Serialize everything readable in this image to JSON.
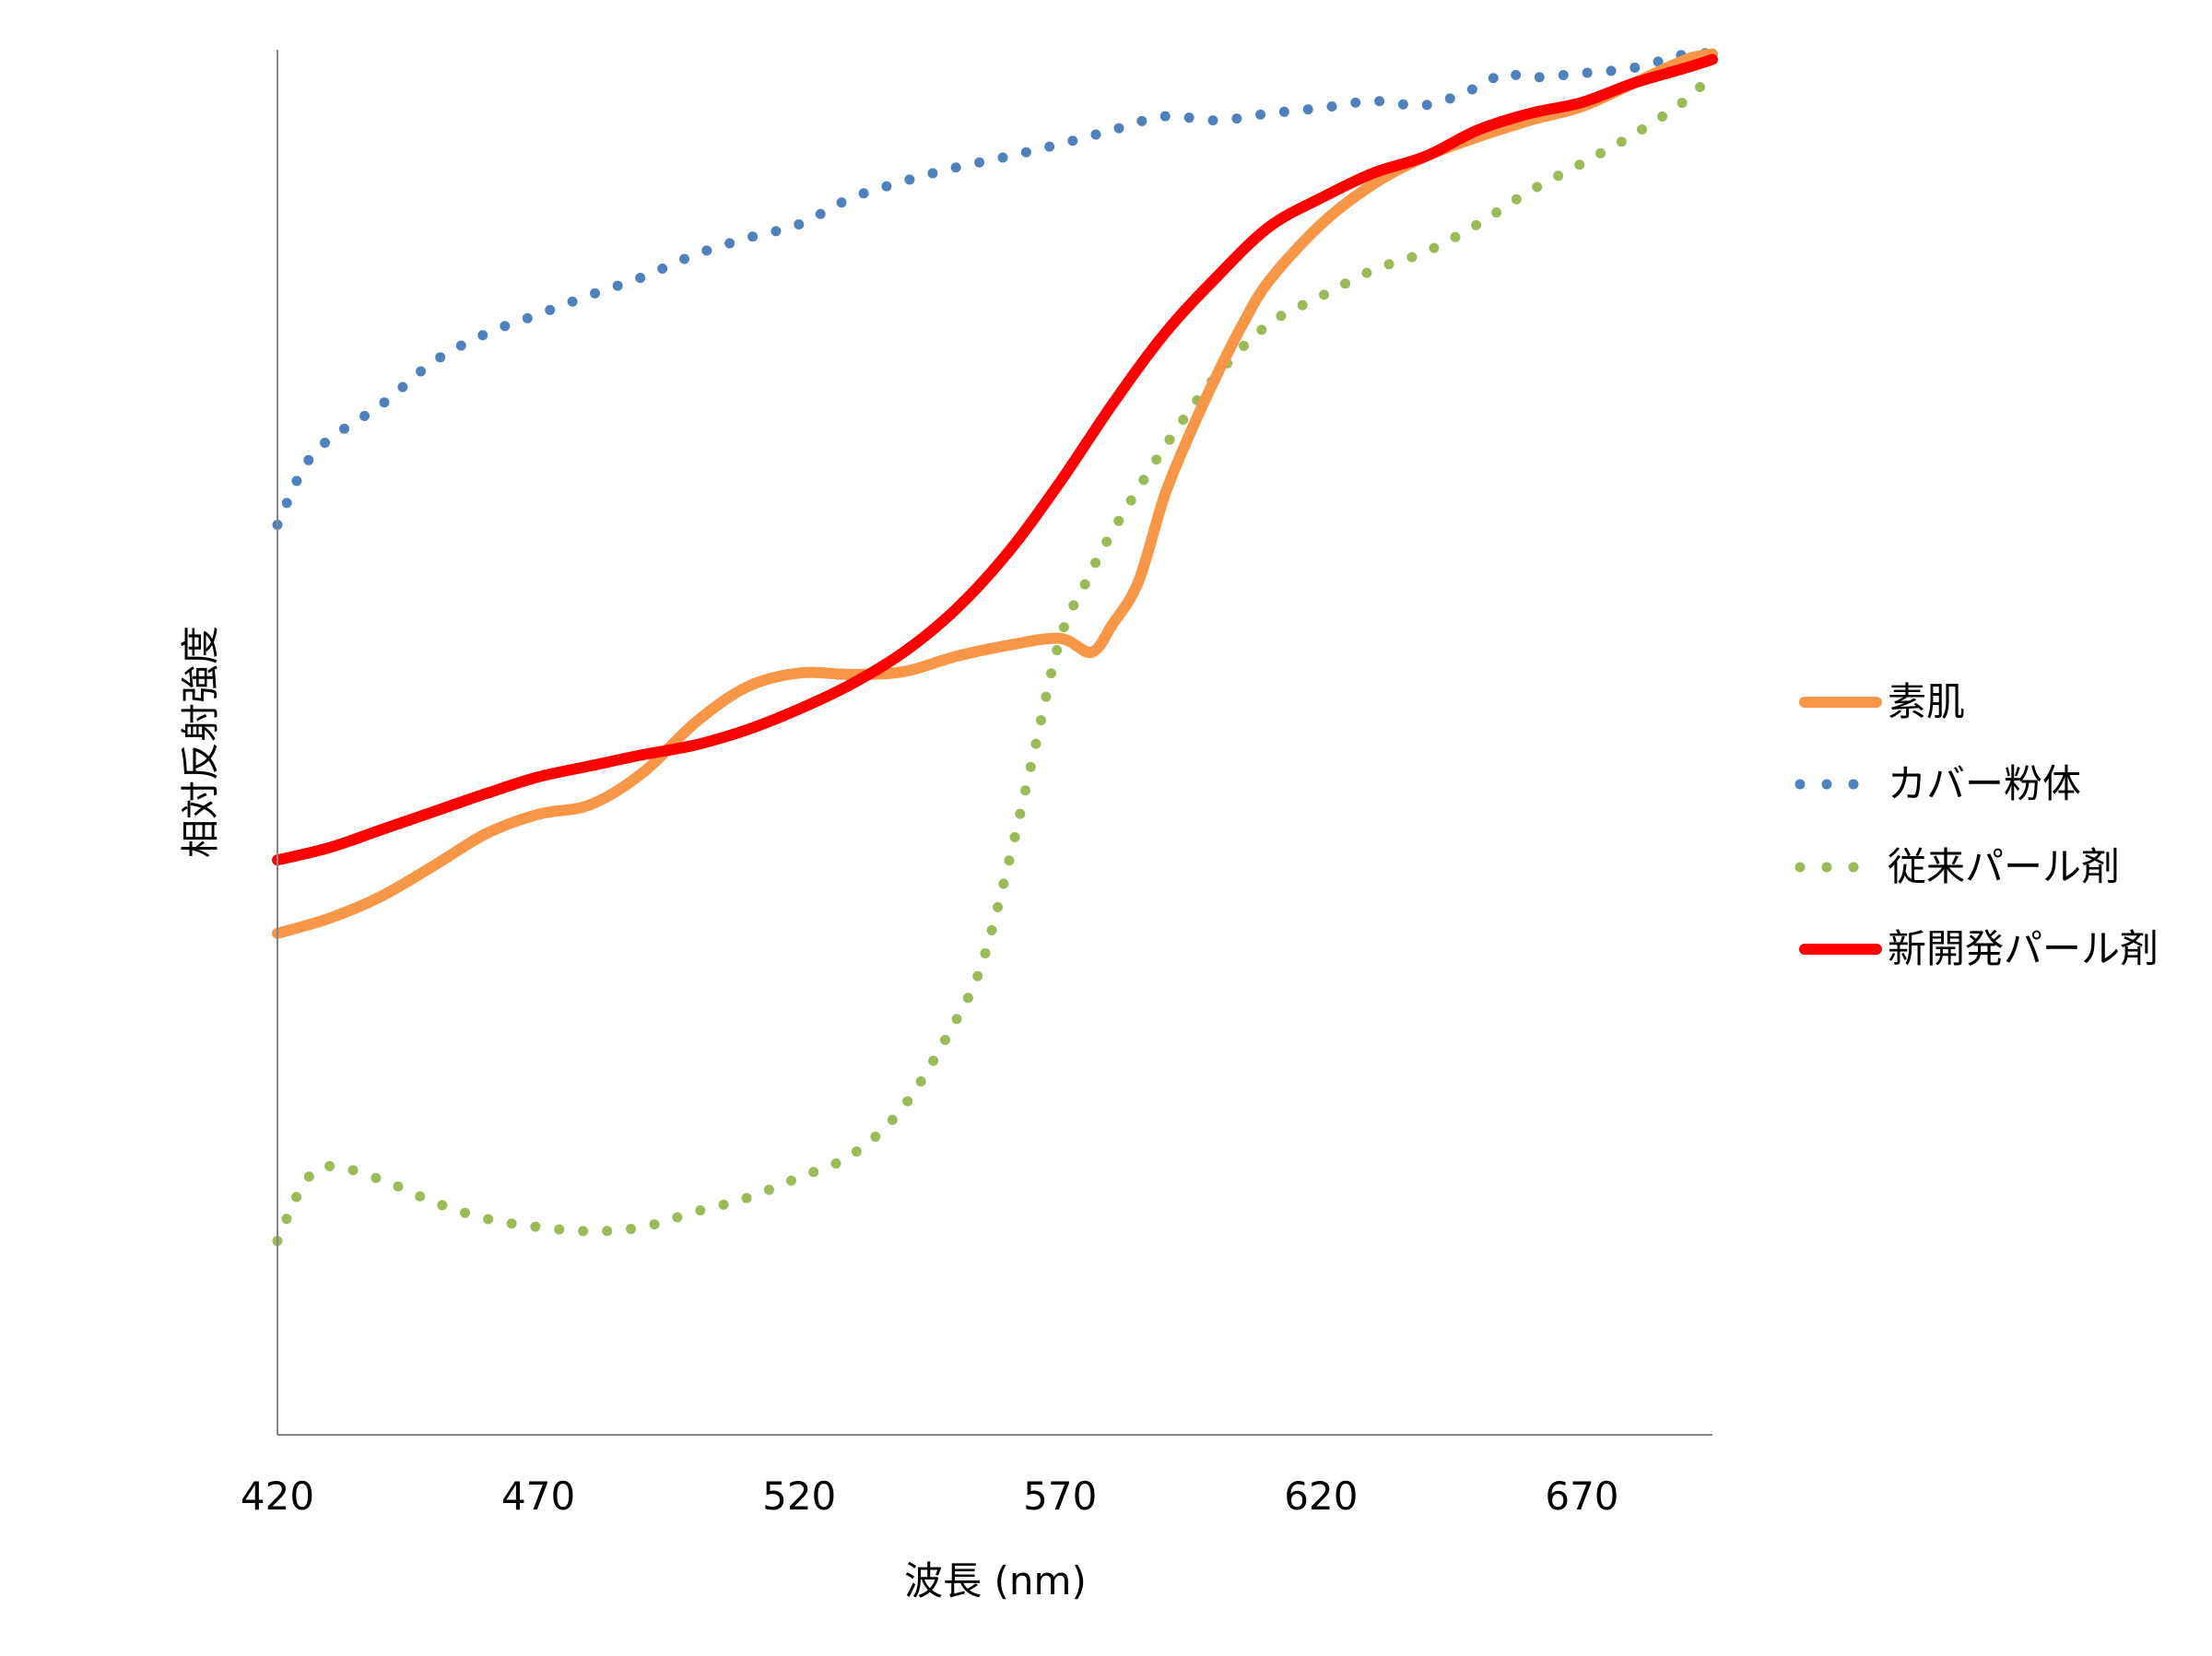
{
  "chart_data": {
    "type": "line",
    "title": "",
    "xlabel": "波長 (nm)",
    "ylabel": "相対反射強度",
    "xlim": [
      420,
      695
    ],
    "ylim": [
      0,
      1
    ],
    "xticks": [
      420,
      470,
      520,
      570,
      620,
      670
    ],
    "yticks_shown": false,
    "grid": false,
    "legend_position": "right",
    "series": [
      {
        "name": "素肌",
        "color": "#F79646",
        "style": "solid",
        "x": [
          420,
          430,
          440,
          450,
          460,
          470,
          480,
          490,
          500,
          510,
          520,
          530,
          540,
          550,
          560,
          570,
          576,
          580,
          585,
          590,
          595,
          600,
          605,
          610,
          620,
          630,
          640,
          650,
          660,
          670,
          680,
          690,
          695
        ],
        "y": [
          0.362,
          0.373,
          0.389,
          0.411,
          0.434,
          0.448,
          0.455,
          0.478,
          0.514,
          0.54,
          0.55,
          0.549,
          0.551,
          0.562,
          0.57,
          0.575,
          0.565,
          0.585,
          0.616,
          0.678,
          0.724,
          0.765,
          0.802,
          0.833,
          0.874,
          0.903,
          0.923,
          0.937,
          0.949,
          0.959,
          0.976,
          0.993,
          0.997
        ]
      },
      {
        "name": "カバー粉体",
        "color": "#4F81BD",
        "style": "dotted",
        "x": [
          420,
          425,
          430,
          440,
          450,
          460,
          470,
          480,
          490,
          500,
          510,
          520,
          530,
          540,
          550,
          560,
          570,
          580,
          590,
          600,
          610,
          620,
          630,
          640,
          650,
          655,
          660,
          670,
          680,
          690,
          695
        ],
        "y": [
          0.657,
          0.698,
          0.719,
          0.744,
          0.775,
          0.795,
          0.809,
          0.823,
          0.836,
          0.852,
          0.864,
          0.874,
          0.893,
          0.905,
          0.915,
          0.923,
          0.932,
          0.942,
          0.952,
          0.949,
          0.954,
          0.958,
          0.963,
          0.96,
          0.973,
          0.983,
          0.98,
          0.983,
          0.987,
          0.997,
          0.997
        ]
      },
      {
        "name": "従来パール剤",
        "color": "#9BBB59",
        "style": "dotted",
        "x": [
          420,
          425,
          430,
          440,
          450,
          460,
          470,
          480,
          490,
          500,
          510,
          520,
          530,
          540,
          550,
          555,
          560,
          565,
          570,
          575,
          580,
          590,
          600,
          610,
          620,
          630,
          640,
          650,
          660,
          670,
          680,
          690,
          695
        ],
        "y": [
          0.14,
          0.181,
          0.194,
          0.184,
          0.168,
          0.156,
          0.15,
          0.147,
          0.15,
          0.161,
          0.171,
          0.186,
          0.202,
          0.237,
          0.299,
          0.34,
          0.411,
          0.493,
          0.575,
          0.616,
          0.652,
          0.713,
          0.765,
          0.802,
          0.822,
          0.841,
          0.854,
          0.874,
          0.898,
          0.918,
          0.939,
          0.964,
          0.983
        ]
      },
      {
        "name": "新開発パール剤",
        "color": "#FF0000",
        "style": "solid",
        "x": [
          420,
          430,
          440,
          450,
          460,
          470,
          480,
          490,
          500,
          510,
          520,
          530,
          540,
          550,
          560,
          570,
          580,
          590,
          600,
          610,
          620,
          630,
          640,
          650,
          660,
          670,
          680,
          690,
          695
        ],
        "y": [
          0.415,
          0.424,
          0.437,
          0.45,
          0.463,
          0.475,
          0.483,
          0.491,
          0.498,
          0.509,
          0.524,
          0.542,
          0.565,
          0.596,
          0.637,
          0.688,
          0.744,
          0.795,
          0.836,
          0.872,
          0.893,
          0.911,
          0.923,
          0.942,
          0.954,
          0.962,
          0.976,
          0.987,
          0.993
        ]
      }
    ]
  }
}
